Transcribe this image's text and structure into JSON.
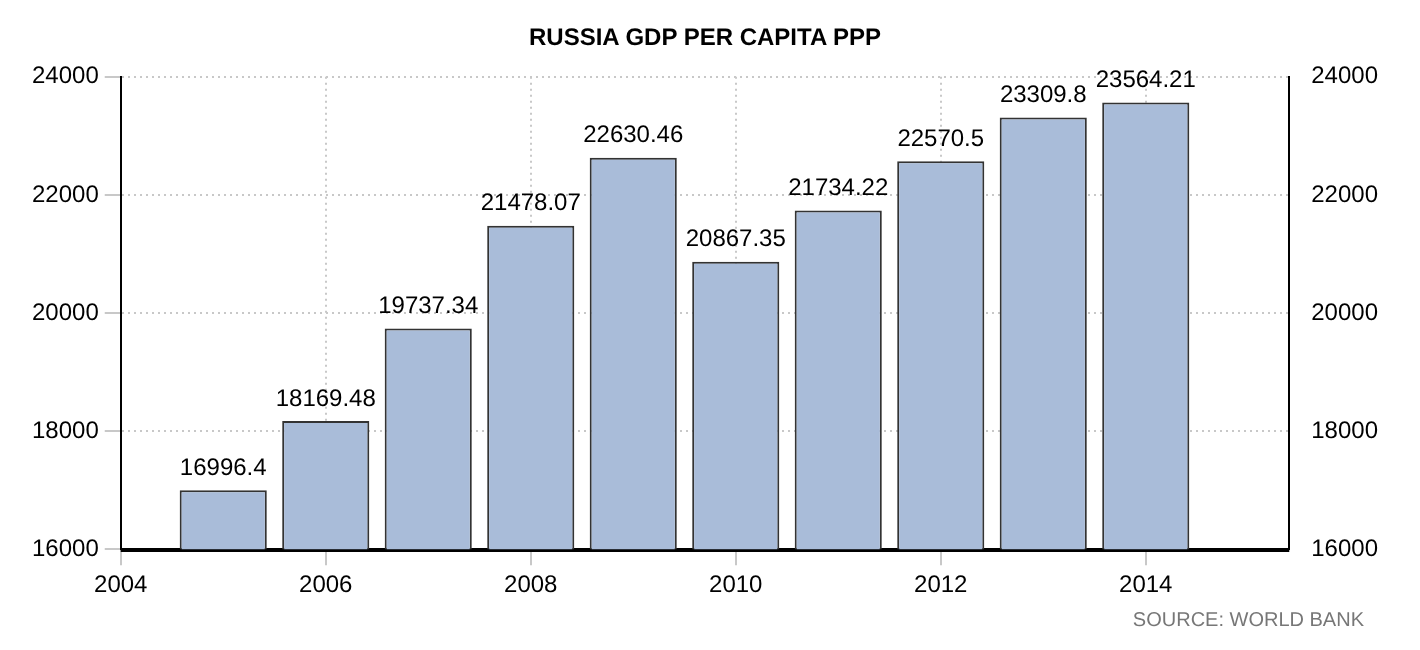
{
  "chart_data": {
    "type": "bar",
    "title": "RUSSIA GDP PER CAPITA PPP",
    "x": [
      2005,
      2006,
      2007,
      2008,
      2009,
      2010,
      2011,
      2012,
      2013,
      2014
    ],
    "series": [
      {
        "color": "#a9bcd9",
        "values": [
          16996.4,
          18169.48,
          19737.34,
          21478.07,
          22630.46,
          20867.35,
          21734.22,
          22570.5,
          23309.8,
          23564.21
        ]
      }
    ],
    "xlim": [
      2004,
      2015.4
    ],
    "xticks": [
      2004,
      2006,
      2008,
      2010,
      2012,
      2014
    ],
    "ylim": [
      16000,
      24000
    ],
    "yticks": [
      16000,
      18000,
      20000,
      22000,
      24000
    ],
    "y2lim": [
      16000,
      24000
    ],
    "y2ticks": [
      16000,
      18000,
      20000,
      22000,
      24000
    ],
    "grid": true,
    "data_labels": true,
    "legend": false,
    "annotations": [
      "SOURCE: WORLD BANK"
    ]
  }
}
